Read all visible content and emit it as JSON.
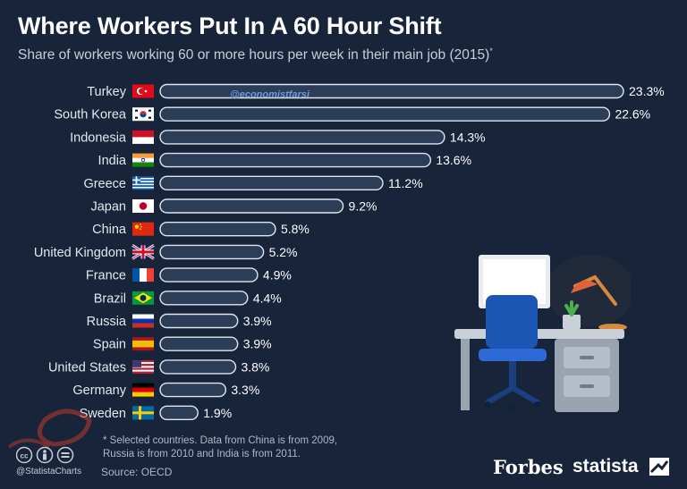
{
  "title": "Where Workers Put In A 60 Hour Shift",
  "subtitle": "Share of workers working 60 or more hours per week in their main job (2015)",
  "subtitle_mark": "*",
  "watermark": "@economistfarsi",
  "chart_data": {
    "type": "bar",
    "orientation": "horizontal",
    "title": "Where Workers Put In A 60 Hour Shift",
    "subtitle": "Share of workers working 60 or more hours per week in their main job (2015)*",
    "categories": [
      "Turkey",
      "South Korea",
      "Indonesia",
      "India",
      "Greece",
      "Japan",
      "China",
      "United Kingdom",
      "France",
      "Brazil",
      "Russia",
      "Spain",
      "United States",
      "Germany",
      "Sweden"
    ],
    "values": [
      23.3,
      22.6,
      14.3,
      13.6,
      11.2,
      9.2,
      5.8,
      5.2,
      4.9,
      4.4,
      3.9,
      3.9,
      3.8,
      3.3,
      1.9
    ],
    "value_labels": [
      "23.3%",
      "22.6%",
      "14.3%",
      "13.6%",
      "11.2%",
      "9.2%",
      "5.8%",
      "5.2%",
      "4.9%",
      "4.4%",
      "3.9%",
      "3.9%",
      "3.8%",
      "3.3%",
      "1.9%"
    ],
    "unit": "%",
    "xlim": [
      0,
      23.3
    ],
    "grid": false,
    "legend": "none"
  },
  "footnote": {
    "line1": "* Selected countries. Data from China is from 2009,",
    "line2": "Russia is from 2010 and India is from 2011."
  },
  "credit_handle": "@StatistaCharts",
  "source": "Source: OECD",
  "brands": {
    "forbes": "Forbes",
    "statista": "statista"
  },
  "colors": {
    "background": "#17243a",
    "bar_fill": "#2c3d57",
    "bar_outline": "#dfe6ef"
  },
  "icons": [
    "creative-commons-icon",
    "attribution-icon",
    "no-derivatives-icon",
    "statista-logo-icon",
    "desk-illustration",
    "flag-icon"
  ]
}
